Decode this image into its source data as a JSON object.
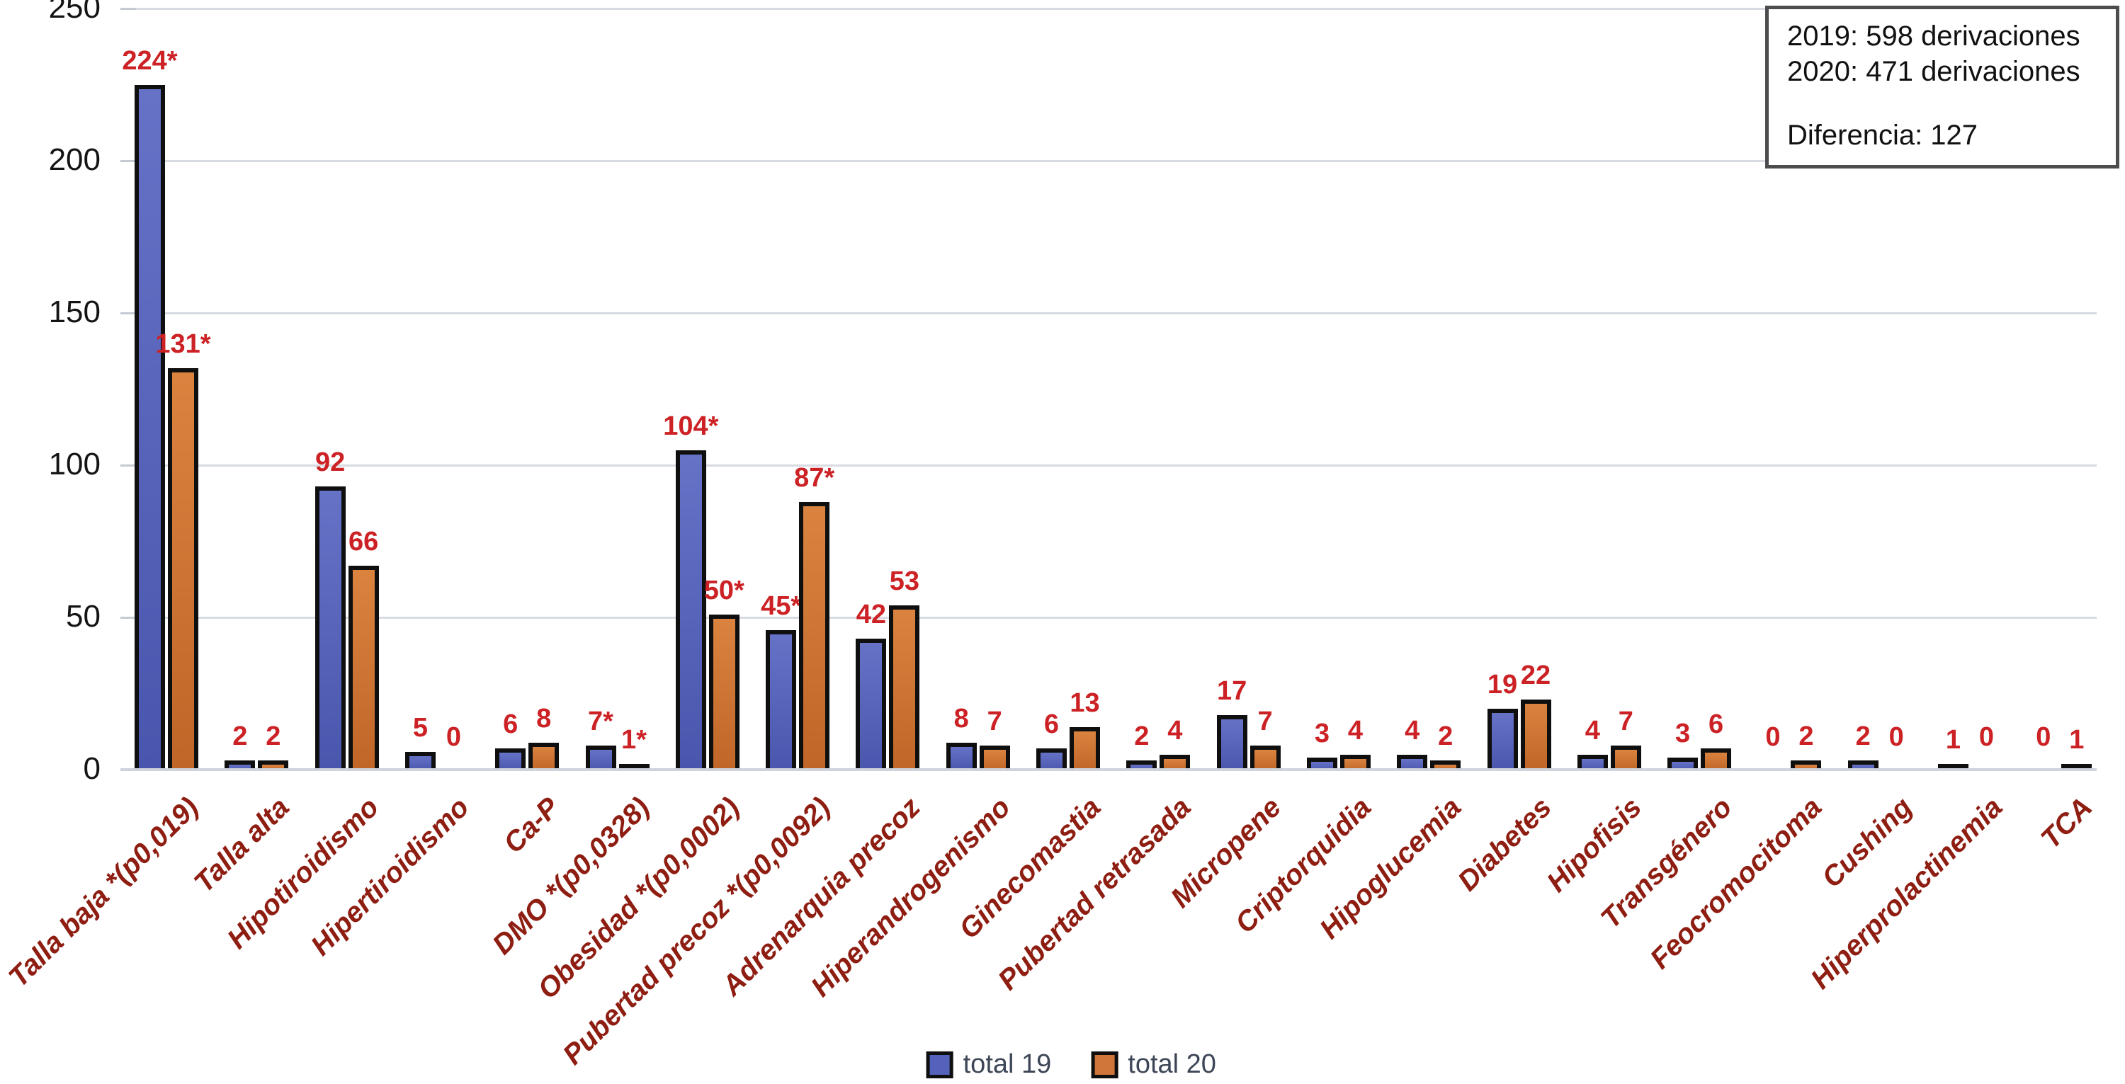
{
  "chart_data": {
    "type": "bar",
    "title": "",
    "xlabel": "",
    "ylabel": "",
    "ylim": [
      0,
      250
    ],
    "yticks": [
      0,
      50,
      100,
      150,
      200,
      250
    ],
    "grid": true,
    "legend_position": "bottom",
    "categories": [
      "Talla baja *(p0,019)",
      "Talla alta",
      "Hipotiroidismo",
      "Hipertiroidismo",
      "Ca-P",
      "DMO *(p0,0328)",
      "Obesidad *(p0,0002)",
      "Pubertad precoz *(p0,0092)",
      "Adrenarquia precoz",
      "Hiperandrogenismo",
      "Ginecomastia",
      "Pubertad retrasada",
      "Micropene",
      "Criptorquidia",
      "Hipoglucemia",
      "Diabetes",
      "Hipofisis",
      "Transgénero",
      "Feocromocitoma",
      "Cushing",
      "Hiperprolactinemia",
      "TCA"
    ],
    "series": [
      {
        "name": "total 19",
        "color_top": "#6672c6",
        "color_bottom": "#4956ad",
        "swatch": "#5562bb",
        "values": [
          224,
          2,
          92,
          5,
          6,
          7,
          104,
          45,
          42,
          8,
          6,
          2,
          17,
          3,
          4,
          19,
          4,
          3,
          0,
          2,
          1,
          0
        ],
        "value_labels": [
          "224*",
          "2",
          "92",
          "5",
          "6",
          "7*",
          "104*",
          "45*",
          "42",
          "8",
          "6",
          "2",
          "17",
          "3",
          "4",
          "19",
          "4",
          "3",
          "0",
          "2",
          "1",
          "0"
        ]
      },
      {
        "name": "total 20",
        "color_top": "#da833f",
        "color_bottom": "#bf6628",
        "swatch": "#d0763a",
        "values": [
          131,
          2,
          66,
          0,
          8,
          1,
          50,
          87,
          53,
          7,
          13,
          4,
          7,
          4,
          2,
          22,
          7,
          6,
          2,
          0,
          0,
          1
        ],
        "value_labels": [
          "131*",
          "2",
          "66",
          "0",
          "8",
          "1*",
          "50*",
          "87*",
          "53",
          "7",
          "13",
          "4",
          "7",
          "4",
          "2",
          "22",
          "7",
          "6",
          "2",
          "0",
          "0",
          "1"
        ]
      }
    ]
  },
  "annotation_box": {
    "line1": "2019: 598 derivaciones",
    "line2": "2020: 471 derivaciones",
    "line3": "Diferencia: 127"
  },
  "colors": {
    "value_label": "#cc2125",
    "category_label": "#8e1d12",
    "gridline": "#d8dbe2",
    "bar_border": "#0f0f0f"
  }
}
